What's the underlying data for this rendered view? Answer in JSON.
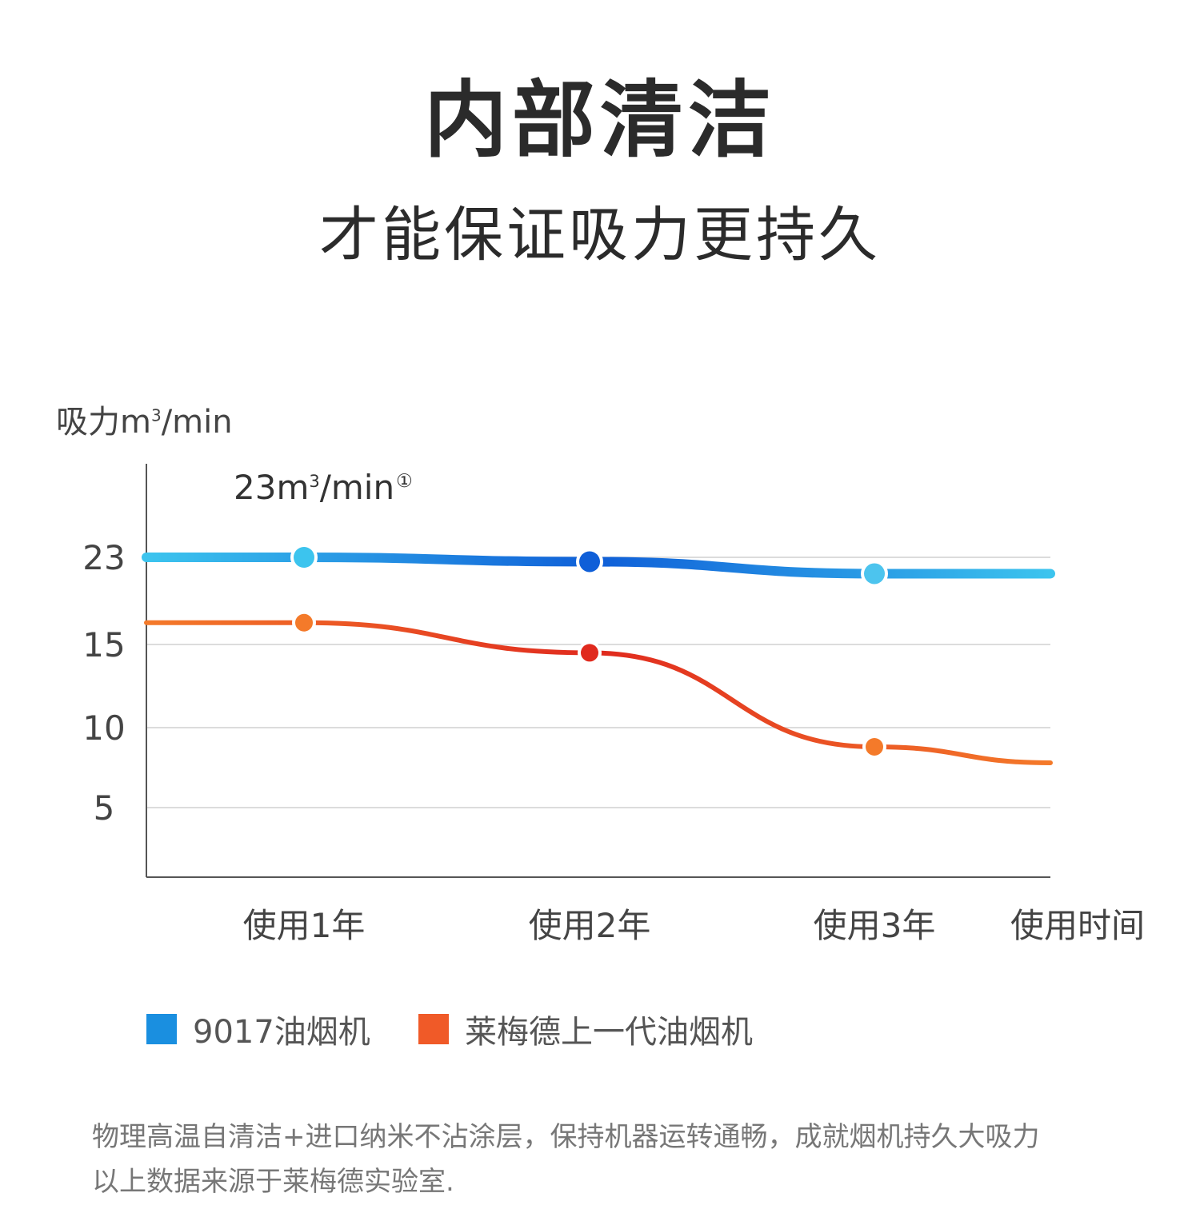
{
  "header": {
    "title": "内部清洁",
    "subtitle": "才能保证吸力更持久"
  },
  "chart_data": {
    "type": "line",
    "ylabel_prefix": "吸力m",
    "ylabel_sup": "3",
    "ylabel_suffix": "/min",
    "xlabel": "使用时间",
    "categories": [
      "使用1年",
      "使用2年",
      "使用3年"
    ],
    "yticks": [
      23,
      15,
      10,
      5
    ],
    "ylim": [
      0,
      28
    ],
    "grid": true,
    "annotation": {
      "prefix": "23m",
      "sup": "3",
      "suffix": "/min",
      "note": "①"
    },
    "series": [
      {
        "name": "9017油烟机",
        "color": "#1a8fe0",
        "values": [
          23,
          22.6,
          21.5
        ]
      },
      {
        "name": "莱梅德上一代油烟机",
        "color": "#f05a28",
        "values": [
          17,
          14.5,
          8.8
        ]
      }
    ]
  },
  "legend": [
    {
      "label": "9017油烟机",
      "color": "#1a8fe0"
    },
    {
      "label": "莱梅德上一代油烟机",
      "color": "#f05a28"
    }
  ],
  "footnote": {
    "line1": "物理高温自清洁+进口纳米不沾涂层，保持机器运转通畅，成就烟机持久大吸力",
    "line2": "以上数据来源于莱梅德实验室."
  }
}
